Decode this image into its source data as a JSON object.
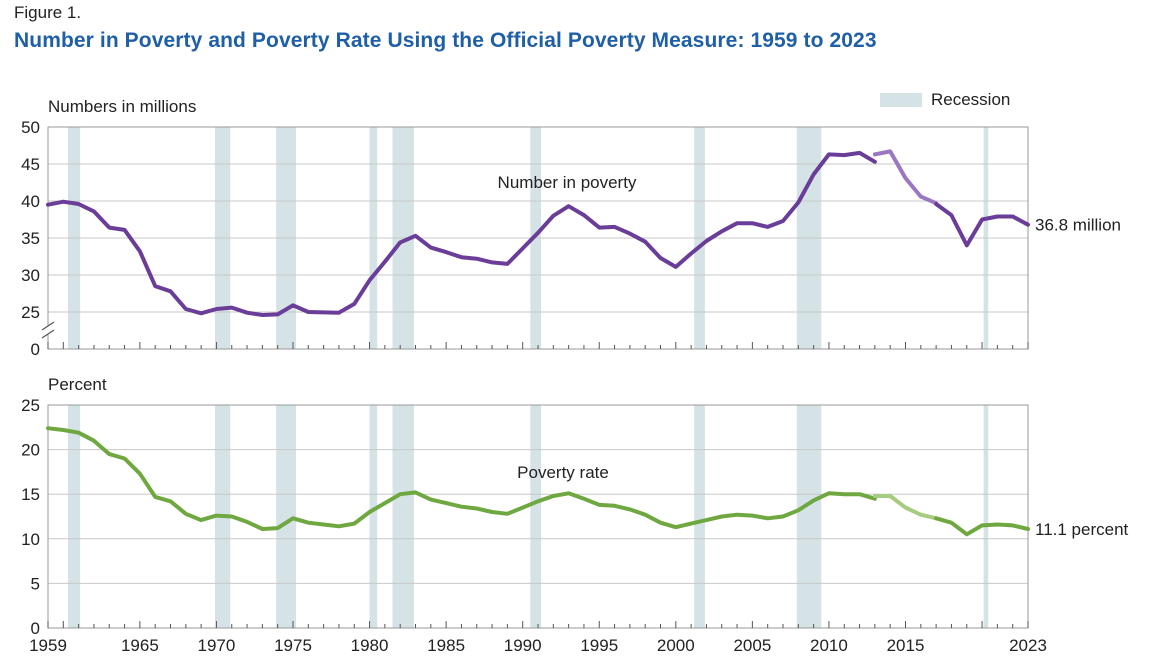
{
  "figure": {
    "label": "Figure 1.",
    "title": "Number in Poverty and Poverty Rate Using the Official Poverty Measure: 1959 to 2023"
  },
  "legend": {
    "recession_label": "Recession",
    "recession_color": "#d5e3e7",
    "placement": "top-right"
  },
  "chart_data": [
    {
      "type": "line",
      "ylabel": "Numbers in millions",
      "series_label": "Number in poverty",
      "end_label": "36.8 million",
      "color": "#6a3d98",
      "light_color": "#9a77c0",
      "ylim": [
        0,
        50
      ],
      "y_ticks": [
        "0",
        "25",
        "30",
        "35",
        "40",
        "45",
        "50"
      ],
      "axis_break": true,
      "grid": true,
      "x": [
        1959,
        1960,
        1961,
        1962,
        1963,
        1964,
        1965,
        1966,
        1967,
        1968,
        1969,
        1970,
        1971,
        1972,
        1973,
        1974,
        1975,
        1976,
        1977,
        1978,
        1979,
        1980,
        1981,
        1982,
        1983,
        1984,
        1985,
        1986,
        1987,
        1988,
        1989,
        1990,
        1991,
        1992,
        1993,
        1994,
        1995,
        1996,
        1997,
        1998,
        1999,
        2000,
        2001,
        2002,
        2003,
        2004,
        2005,
        2006,
        2007,
        2008,
        2009,
        2010,
        2011,
        2012,
        2013,
        2013,
        2014,
        2015,
        2016,
        2017,
        2017,
        2018,
        2019,
        2020,
        2021,
        2022,
        2023
      ],
      "values": [
        39.5,
        39.9,
        39.6,
        38.6,
        36.4,
        36.1,
        33.2,
        28.5,
        27.8,
        25.4,
        24.1,
        25.4,
        25.6,
        24.5,
        23.0,
        23.4,
        25.9,
        25.0,
        24.7,
        24.5,
        26.1,
        29.3,
        31.8,
        34.4,
        35.3,
        33.7,
        33.1,
        32.4,
        32.2,
        31.7,
        31.5,
        33.6,
        35.7,
        38.0,
        39.3,
        38.1,
        36.4,
        36.5,
        35.6,
        34.5,
        32.3,
        31.1,
        32.9,
        34.6,
        35.9,
        37.0,
        37.0,
        36.5,
        37.3,
        39.8,
        43.6,
        46.3,
        46.2,
        46.5,
        45.3,
        46.3,
        46.7,
        43.1,
        40.6,
        39.7,
        39.6,
        38.1,
        34.0,
        37.5,
        37.9,
        37.9,
        36.8
      ],
      "segments": [
        {
          "style": "dark",
          "from": 0,
          "to": 54
        },
        {
          "style": "light",
          "from": 55,
          "to": 59
        },
        {
          "style": "dark",
          "from": 60,
          "to": 66
        }
      ]
    },
    {
      "type": "line",
      "ylabel": "Percent",
      "series_label": "Poverty rate",
      "end_label": "11.1 percent",
      "color": "#6fa840",
      "light_color": "#a6cc82",
      "ylim": [
        0,
        25
      ],
      "y_ticks": [
        "0",
        "5",
        "10",
        "15",
        "20",
        "25"
      ],
      "grid": true,
      "x": [
        1959,
        1960,
        1961,
        1962,
        1963,
        1964,
        1965,
        1966,
        1967,
        1968,
        1969,
        1970,
        1971,
        1972,
        1973,
        1974,
        1975,
        1976,
        1977,
        1978,
        1979,
        1980,
        1981,
        1982,
        1983,
        1984,
        1985,
        1986,
        1987,
        1988,
        1989,
        1990,
        1991,
        1992,
        1993,
        1994,
        1995,
        1996,
        1997,
        1998,
        1999,
        2000,
        2001,
        2002,
        2003,
        2004,
        2005,
        2006,
        2007,
        2008,
        2009,
        2010,
        2011,
        2012,
        2013,
        2013,
        2014,
        2015,
        2016,
        2017,
        2017,
        2018,
        2019,
        2020,
        2021,
        2022,
        2023
      ],
      "values": [
        22.4,
        22.2,
        21.9,
        21.0,
        19.5,
        19.0,
        17.3,
        14.7,
        14.2,
        12.8,
        12.1,
        12.6,
        12.5,
        11.9,
        11.1,
        11.2,
        12.3,
        11.8,
        11.6,
        11.4,
        11.7,
        13.0,
        14.0,
        15.0,
        15.2,
        14.4,
        14.0,
        13.6,
        13.4,
        13.0,
        12.8,
        13.5,
        14.2,
        14.8,
        15.1,
        14.5,
        13.8,
        13.7,
        13.3,
        12.7,
        11.8,
        11.3,
        11.7,
        12.1,
        12.5,
        12.7,
        12.6,
        12.3,
        12.5,
        13.2,
        14.3,
        15.1,
        15.0,
        15.0,
        14.5,
        14.8,
        14.8,
        13.5,
        12.7,
        12.3,
        12.3,
        11.8,
        10.5,
        11.5,
        11.6,
        11.5,
        11.1
      ],
      "segments": [
        {
          "style": "dark",
          "from": 0,
          "to": 54
        },
        {
          "style": "light",
          "from": 55,
          "to": 59
        },
        {
          "style": "dark",
          "from": 60,
          "to": 66
        }
      ]
    }
  ],
  "recessions": [
    [
      1960.3,
      1961.1
    ],
    [
      1969.9,
      1970.9
    ],
    [
      1973.9,
      1975.2
    ],
    [
      1980.0,
      1980.5
    ],
    [
      1981.5,
      1982.9
    ],
    [
      1990.5,
      1991.2
    ],
    [
      2001.2,
      2001.9
    ],
    [
      2007.9,
      2009.5
    ],
    [
      2020.1,
      2020.4
    ]
  ],
  "x_axis": {
    "range": [
      1959,
      2023
    ],
    "tick_labels": [
      "1959",
      "1965",
      "1970",
      "1975",
      "1980",
      "1985",
      "1990",
      "1995",
      "2000",
      "2005",
      "2010",
      "2015",
      "2023"
    ],
    "tick_values": [
      1959,
      1965,
      1970,
      1975,
      1980,
      1985,
      1990,
      1995,
      2000,
      2005,
      2010,
      2015,
      2023
    ]
  }
}
